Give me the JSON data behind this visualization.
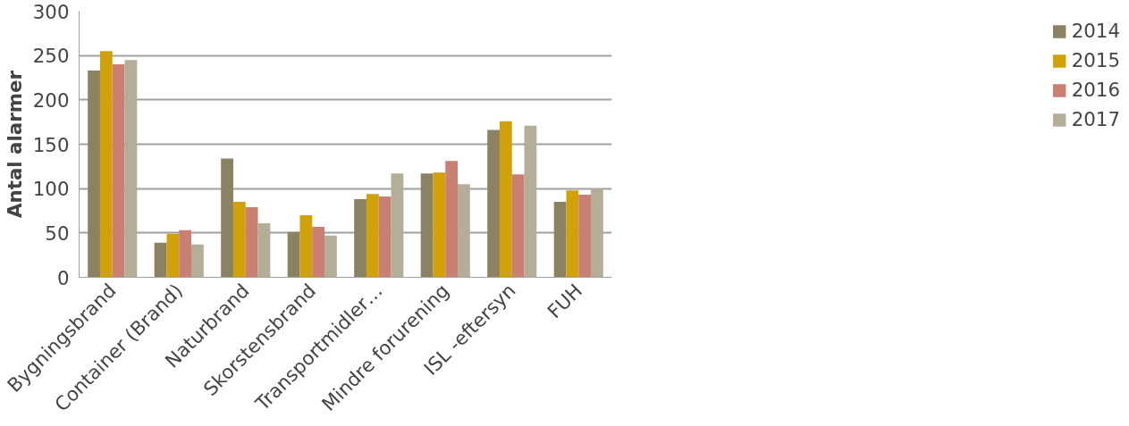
{
  "chart_data": {
    "type": "bar",
    "ylabel": "Antal alarmer",
    "categories": [
      "Bygningsbrand",
      "Container (Brand)",
      "Naturbrand",
      "Skorstensbrand",
      "Transportmidler…",
      "Mindre forurening",
      "ISL -eftersyn",
      "FUH"
    ],
    "series": [
      {
        "name": "2014",
        "color": "#8a8263",
        "values": [
          233,
          39,
          134,
          51,
          88,
          117,
          166,
          85
        ]
      },
      {
        "name": "2015",
        "color": "#d0a208",
        "values": [
          255,
          49,
          85,
          70,
          94,
          118,
          176,
          98
        ]
      },
      {
        "name": "2016",
        "color": "#c97f72",
        "values": [
          240,
          53,
          79,
          57,
          91,
          131,
          116,
          93
        ]
      },
      {
        "name": "2017",
        "color": "#b4ad98",
        "values": [
          245,
          37,
          61,
          47,
          117,
          105,
          171,
          100
        ]
      }
    ],
    "ylim": [
      0,
      300
    ],
    "yticks": [
      0,
      50,
      100,
      150,
      200,
      250,
      300
    ],
    "grid": "y",
    "legend": "right"
  }
}
